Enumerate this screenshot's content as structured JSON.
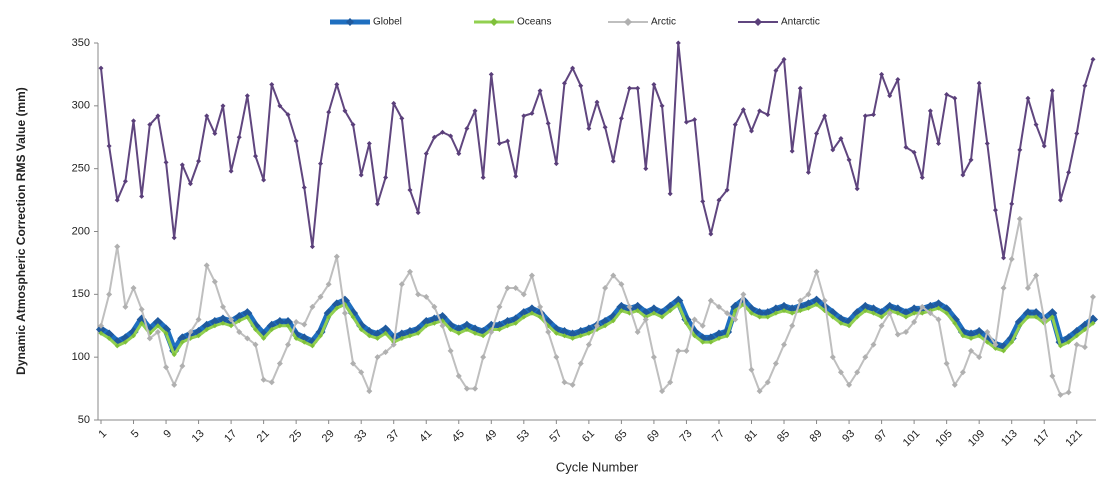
{
  "chart_data": {
    "type": "line",
    "y_label": "Dynamic Atmospheric Correction RMS Value (mm)",
    "x_label": "Cycle Number",
    "categories": [
      1,
      null,
      null,
      null,
      5,
      null,
      null,
      null,
      9,
      null,
      null,
      null,
      13,
      null,
      null,
      null,
      17,
      null,
      null,
      null,
      21,
      null,
      null,
      null,
      25,
      null,
      null,
      null,
      29,
      null,
      null,
      null,
      33,
      null,
      null,
      null,
      37,
      null,
      null,
      null,
      41,
      null,
      null,
      null,
      45,
      null,
      null,
      null,
      49,
      null,
      null,
      null,
      53,
      null,
      null,
      null,
      57,
      null,
      null,
      null,
      61,
      null,
      null,
      null,
      65,
      null,
      null,
      null,
      69,
      null,
      null,
      null,
      73,
      null,
      null,
      null,
      77,
      null,
      null,
      null,
      81,
      null,
      null,
      null,
      85,
      null,
      null,
      null,
      89,
      null,
      null,
      null,
      93,
      null,
      null,
      null,
      97,
      null,
      null,
      null,
      101,
      null,
      null,
      null,
      105,
      null,
      null,
      null,
      109,
      null,
      null,
      null,
      113,
      null,
      null,
      null,
      117,
      null,
      null,
      null,
      121,
      null,
      null
    ],
    "ylim": [
      50,
      350
    ],
    "yticks": [
      50,
      100,
      150,
      200,
      250,
      300,
      350
    ],
    "grid": false,
    "legend": "top",
    "series": [
      {
        "name": "Globel",
        "color": "#1f6fc0",
        "marker": "#1f5a9e",
        "values": [
          122,
          118,
          112,
          115,
          120,
          130,
          122,
          128,
          122,
          105,
          115,
          118,
          120,
          125,
          128,
          130,
          128,
          132,
          135,
          125,
          118,
          125,
          128,
          128,
          118,
          115,
          112,
          120,
          135,
          142,
          145,
          135,
          125,
          120,
          118,
          122,
          115,
          118,
          120,
          122,
          128,
          130,
          132,
          125,
          122,
          125,
          122,
          120,
          125,
          125,
          128,
          130,
          135,
          138,
          135,
          128,
          122,
          120,
          118,
          120,
          122,
          125,
          128,
          132,
          140,
          138,
          140,
          135,
          138,
          135,
          140,
          145,
          130,
          120,
          115,
          115,
          118,
          120,
          140,
          145,
          138,
          135,
          135,
          138,
          140,
          138,
          140,
          142,
          145,
          140,
          135,
          130,
          128,
          135,
          140,
          138,
          135,
          140,
          138,
          135,
          138,
          138,
          140,
          142,
          138,
          130,
          120,
          118,
          120,
          115,
          110,
          108,
          115,
          128,
          135,
          135,
          130,
          135,
          112,
          115,
          120,
          125,
          130
        ]
      },
      {
        "name": "Oceans",
        "color": "#92d050",
        "marker": "#7fc03a",
        "values": [
          119,
          115,
          109,
          112,
          117,
          127,
          119,
          125,
          119,
          102,
          112,
          115,
          117,
          122,
          125,
          127,
          125,
          129,
          132,
          122,
          115,
          122,
          125,
          125,
          115,
          112,
          109,
          117,
          132,
          139,
          142,
          132,
          122,
          117,
          115,
          119,
          112,
          115,
          117,
          119,
          125,
          127,
          129,
          122,
          119,
          122,
          119,
          117,
          122,
          122,
          125,
          127,
          132,
          135,
          132,
          125,
          119,
          117,
          115,
          117,
          119,
          122,
          125,
          129,
          137,
          135,
          137,
          132,
          135,
          132,
          137,
          142,
          127,
          117,
          112,
          112,
          115,
          117,
          137,
          142,
          135,
          132,
          132,
          135,
          137,
          135,
          137,
          139,
          142,
          137,
          132,
          127,
          125,
          132,
          137,
          135,
          132,
          137,
          135,
          132,
          135,
          135,
          137,
          139,
          135,
          127,
          117,
          115,
          117,
          112,
          107,
          105,
          112,
          125,
          132,
          132,
          127,
          132,
          109,
          112,
          117,
          122,
          127
        ]
      },
      {
        "name": "Arctic",
        "color": "#bfbfbf",
        "marker": "#b0b0b0",
        "values": [
          125,
          150,
          188,
          140,
          155,
          138,
          115,
          120,
          92,
          78,
          93,
          120,
          130,
          173,
          160,
          140,
          130,
          120,
          115,
          110,
          82,
          80,
          95,
          110,
          128,
          126,
          140,
          148,
          158,
          180,
          135,
          95,
          88,
          73,
          100,
          104,
          110,
          158,
          168,
          150,
          148,
          140,
          125,
          105,
          85,
          75,
          75,
          100,
          120,
          140,
          155,
          155,
          150,
          165,
          140,
          120,
          100,
          80,
          78,
          95,
          110,
          125,
          155,
          165,
          158,
          140,
          120,
          130,
          100,
          73,
          80,
          105,
          105,
          130,
          125,
          145,
          140,
          135,
          130,
          150,
          90,
          73,
          80,
          95,
          110,
          125,
          145,
          150,
          168,
          145,
          100,
          88,
          78,
          88,
          100,
          110,
          125,
          135,
          118,
          120,
          128,
          140,
          135,
          130,
          95,
          78,
          88,
          105,
          100,
          120,
          110,
          155,
          178,
          210,
          155,
          165,
          130,
          85,
          70,
          72,
          110,
          108,
          148
        ]
      },
      {
        "name": "Antarctic",
        "color": "#60467f",
        "marker": "#5a3f7a",
        "values": [
          330,
          268,
          225,
          240,
          288,
          228,
          285,
          292,
          255,
          195,
          253,
          238,
          256,
          292,
          278,
          300,
          248,
          275,
          308,
          260,
          241,
          317,
          300,
          293,
          272,
          235,
          188,
          254,
          295,
          317,
          296,
          285,
          245,
          270,
          222,
          243,
          302,
          290,
          233,
          215,
          262,
          275,
          279,
          276,
          262,
          282,
          296,
          243,
          325,
          270,
          272,
          244,
          292,
          294,
          312,
          286,
          254,
          318,
          330,
          316,
          282,
          303,
          283,
          256,
          290,
          314,
          314,
          250,
          317,
          300,
          230,
          350,
          287,
          289,
          224,
          198,
          225,
          233,
          285,
          297,
          280,
          296,
          293,
          328,
          337,
          264,
          314,
          247,
          278,
          292,
          265,
          274,
          257,
          234,
          292,
          293,
          325,
          308,
          321,
          267,
          263,
          243,
          296,
          270,
          309,
          306,
          245,
          257,
          318,
          270,
          217,
          179,
          222,
          265,
          306,
          285,
          268,
          312,
          225,
          247,
          278,
          316,
          337
        ]
      }
    ]
  }
}
